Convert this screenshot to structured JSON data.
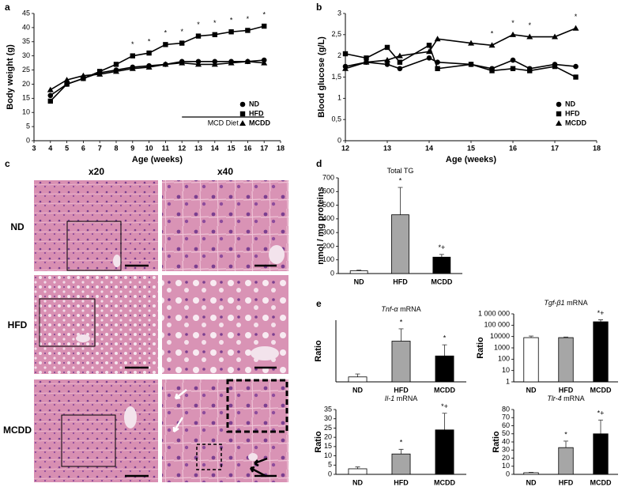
{
  "chart_data": [
    {
      "type": "line",
      "panel": "a",
      "x_label": "Age  (weeks)",
      "y_label": "Body weight (g)",
      "x": [
        4,
        5,
        6,
        7,
        8,
        9,
        10,
        11,
        12,
        13,
        14,
        15,
        16,
        17
      ],
      "xlim": [
        3,
        18
      ],
      "xticks": [
        3,
        4,
        5,
        6,
        7,
        8,
        9,
        10,
        11,
        12,
        13,
        14,
        15,
        16,
        17,
        18
      ],
      "ylim": [
        0,
        45
      ],
      "yticks": [
        0,
        5,
        10,
        15,
        20,
        25,
        30,
        35,
        40,
        45
      ],
      "series": [
        {
          "name": "ND",
          "marker": "circle",
          "color": "#000000",
          "values": [
            16,
            20,
            22,
            24,
            25,
            26,
            26.5,
            27,
            28,
            28,
            28,
            28,
            28,
            28.5
          ]
        },
        {
          "name": "HFD",
          "marker": "square",
          "color": "#000000",
          "values": [
            14,
            20,
            22,
            24.5,
            27,
            30,
            31,
            34,
            34.5,
            37,
            37.5,
            38.5,
            39,
            40.5
          ]
        },
        {
          "name": "MCDD",
          "marker": "triangle",
          "color": "#000000",
          "values": [
            18,
            21.5,
            23,
            23.5,
            24.5,
            25.5,
            26,
            27,
            27.5,
            27,
            27,
            27.5,
            28,
            27.5
          ]
        }
      ],
      "significance": {
        "label": "*",
        "x": [
          9,
          10,
          11,
          12,
          13,
          14,
          15,
          16,
          17
        ]
      },
      "annotation": {
        "text": "MCD Diet",
        "x": [
          12,
          17
        ]
      },
      "legend": "lower right"
    },
    {
      "type": "line",
      "panel": "b",
      "x_label": "Age  (weeks)",
      "y_label": "Blood glucose (g/L)",
      "x": [
        12,
        12.5,
        13,
        13.3,
        14,
        14.2,
        15,
        15.5,
        16,
        16.4,
        17,
        17.5
      ],
      "xlim": [
        12,
        18
      ],
      "xticks": [
        12,
        13,
        14,
        15,
        16,
        17,
        18
      ],
      "ylim": [
        0,
        3
      ],
      "yticks": [
        0,
        {
          "value": 0.5,
          "label": "0,5"
        },
        1,
        {
          "value": 1.5,
          "label": "1,5"
        },
        2,
        {
          "value": 2.5,
          "label": "2,5"
        },
        3
      ],
      "series": [
        {
          "name": "ND",
          "marker": "circle",
          "color": "#000000",
          "values": [
            1.75,
            1.85,
            1.8,
            1.7,
            1.95,
            1.85,
            1.8,
            1.7,
            1.9,
            1.7,
            1.8,
            1.75
          ]
        },
        {
          "name": "HFD",
          "marker": "square",
          "color": "#000000",
          "values": [
            2.05,
            1.95,
            2.2,
            1.85,
            2.25,
            1.7,
            1.8,
            1.65,
            1.7,
            1.65,
            1.75,
            1.5
          ]
        },
        {
          "name": "MCDD",
          "marker": "triangle",
          "color": "#000000",
          "values": [
            1.7,
            1.85,
            1.9,
            2.0,
            2.1,
            2.4,
            2.3,
            2.25,
            2.5,
            2.45,
            2.45,
            2.65
          ]
        }
      ],
      "significance": {
        "label": "*",
        "x": [
          15.5,
          16,
          16.4,
          17.5
        ]
      },
      "legend": "lower right"
    },
    {
      "type": "bar",
      "panel": "d",
      "title": "Total TG",
      "y_label": "nmol / mg proteins",
      "categories": [
        "ND",
        "HFD",
        "MCDD"
      ],
      "values": [
        20,
        430,
        120
      ],
      "errors": [
        5,
        200,
        20
      ],
      "colors": [
        "#ffffff",
        "#a6a6a6",
        "#000000"
      ],
      "significance": [
        null,
        "*",
        "*+"
      ],
      "ylim": [
        0,
        700
      ],
      "yticks": [
        0,
        100,
        200,
        300,
        400,
        500,
        600,
        700
      ]
    },
    {
      "type": "bar",
      "panel": "e",
      "gene": "Tnf-α",
      "title": "mRNA",
      "y_label": "Ratio",
      "categories": [
        "ND",
        "HFD",
        "MCDD"
      ],
      "values": [
        20,
        165,
        105
      ],
      "errors": [
        12,
        50,
        45
      ],
      "colors": [
        "#ffffff",
        "#a6a6a6",
        "#000000"
      ],
      "significance": [
        null,
        "*",
        "*"
      ],
      "ylim": [
        0,
        250
      ]
    },
    {
      "type": "bar",
      "gene": "Tgf-β1",
      "title": "mRNA",
      "y_label": "Ratio",
      "log": true,
      "categories": [
        "ND",
        "HFD",
        "MCDD"
      ],
      "values": [
        8000,
        8000,
        200000
      ],
      "errors": [
        3000,
        1000,
        100000
      ],
      "colors": [
        "#ffffff",
        "#a6a6a6",
        "#000000"
      ],
      "significance": [
        null,
        null,
        "*+"
      ],
      "ylim": [
        1,
        1000000
      ],
      "yticks": [
        1,
        10,
        100,
        1000,
        10000,
        {
          "value": 100000,
          "label": "100 000"
        },
        {
          "value": 1000000,
          "label": "1 000 000"
        }
      ]
    },
    {
      "type": "bar",
      "gene": "Il-1",
      "title": "mRNA",
      "y_label": "Ratio",
      "categories": [
        "ND",
        "HFD",
        "MCDD"
      ],
      "values": [
        3,
        11,
        24
      ],
      "errors": [
        1,
        2.5,
        9
      ],
      "colors": [
        "#ffffff",
        "#a6a6a6",
        "#000000"
      ],
      "significance": [
        null,
        "*",
        "*+"
      ],
      "ylim": [
        0,
        35
      ],
      "yticks": [
        0,
        5,
        10,
        15,
        20,
        25,
        30,
        35
      ]
    },
    {
      "type": "bar",
      "gene": "Tlr-4",
      "title": "mRNA",
      "y_label": "Ratio",
      "categories": [
        "ND",
        "HFD",
        "MCDD"
      ],
      "values": [
        2,
        33,
        50
      ],
      "errors": [
        0.5,
        8,
        17
      ],
      "colors": [
        "#ffffff",
        "#a6a6a6",
        "#000000"
      ],
      "significance": [
        null,
        "*",
        "*+"
      ],
      "ylim": [
        0,
        80
      ],
      "yticks": [
        0,
        10,
        20,
        30,
        40,
        50,
        60,
        70,
        80
      ]
    }
  ],
  "image_panel": {
    "panel": "c",
    "magnifications": [
      "x20",
      "x40"
    ],
    "groups": [
      "ND",
      "HFD",
      "MCDD"
    ]
  }
}
